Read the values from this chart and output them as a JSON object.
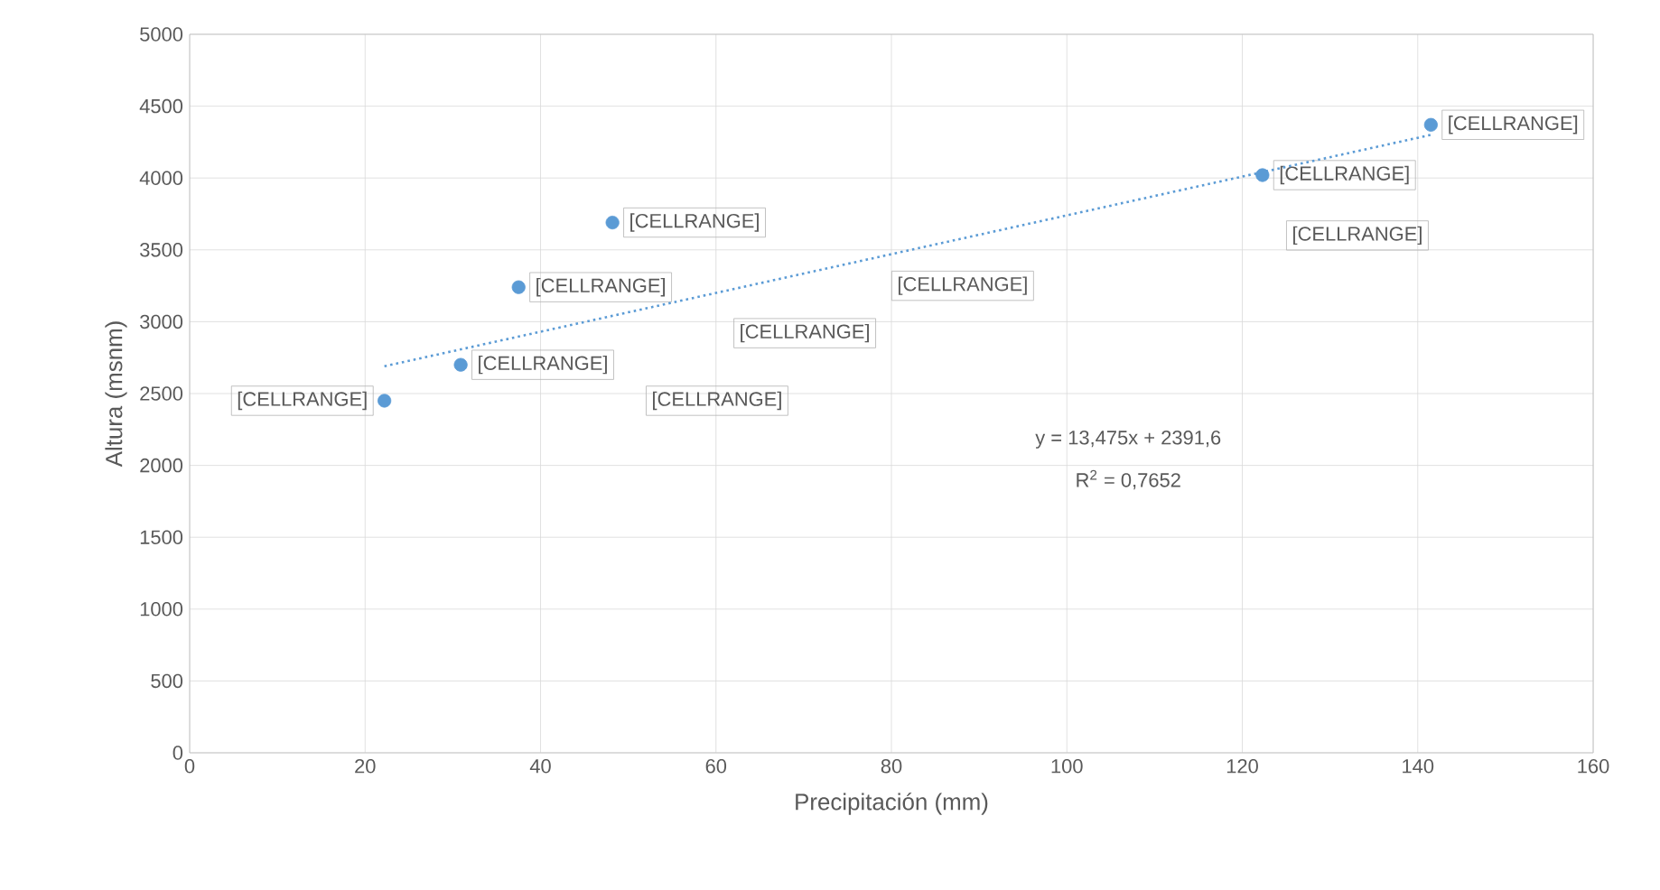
{
  "chart_data": {
    "type": "scatter",
    "xlabel": "Precipitación (mm)",
    "ylabel": "Altura (msnm)",
    "series": [
      {
        "color": "#5b9bd5",
        "x": [
          22.2,
          30.9,
          37.5,
          48.2,
          122.3,
          141.5
        ],
        "values": [
          2450,
          2700,
          3240,
          3690,
          4020,
          4370
        ],
        "value_labels": [
          "[CELLRANGE]",
          "[CELLRANGE]",
          "[CELLRANGE]",
          "[CELLRANGE]",
          "[CELLRANGE]",
          "[CELLRANGE]"
        ],
        "marker": "circle"
      },
      {
        "type": "line",
        "color": "#5b9bd5",
        "line_style": "dotted",
        "marker": "none",
        "x": [
          22.2,
          141.5
        ],
        "values": [
          2690,
          4300
        ]
      }
    ],
    "annotations": [
      "[CELLRANGE]",
      "[CELLRANGE]",
      "[CELLRANGE]",
      "[CELLRANGE]",
      "y = 13,475x  + 2391,6",
      "R$^{2}$ = 0,7652"
    ],
    "xlim": [
      0,
      160
    ],
    "xticks": [
      0,
      20,
      40,
      60,
      80,
      100,
      120,
      140,
      160
    ],
    "ylim": [
      0,
      5000
    ],
    "yticks": [
      0,
      500,
      1000,
      1500,
      2000,
      2500,
      3000,
      3500,
      4000,
      4500,
      5000
    ],
    "grid": true
  }
}
